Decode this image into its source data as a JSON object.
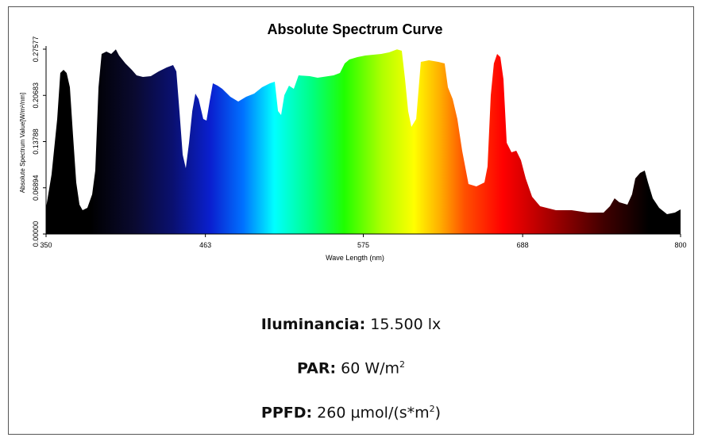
{
  "chart_data": {
    "type": "area",
    "title": "Absolute Spectrum Curve",
    "x_label": "Wave Length (nm)",
    "y_label": "Absolute Spectrum Value[W/m²/nm]",
    "x": [
      350,
      353.9,
      357.9,
      360.1,
      362.4,
      364.6,
      366.9,
      369.1,
      371.4,
      373.7,
      375.9,
      379.3,
      382.7,
      384.9,
      387.2,
      389.4,
      392.8,
      396.2,
      399.5,
      401.8,
      406.3,
      410.8,
      414.2,
      418.7,
      424.3,
      429.9,
      435.6,
      440.1,
      442.4,
      444.6,
      446.9,
      449.1,
      451.4,
      453.7,
      455.9,
      458.2,
      461.5,
      463.8,
      466.0,
      468.3,
      471.7,
      475.0,
      480.7,
      486.3,
      491.9,
      497.6,
      503.2,
      508.8,
      512.2,
      514.5,
      516.7,
      519.0,
      522.3,
      525.7,
      529.1,
      537.0,
      542.6,
      553.9,
      558.4,
      561.8,
      565.1,
      570.8,
      576.4,
      587.7,
      593.3,
      598.9,
      602.3,
      604.6,
      606.8,
      609.1,
      612.5,
      615.8,
      621.5,
      628.2,
      632.7,
      635.0,
      638.4,
      641.7,
      645.1,
      649.6,
      655.2,
      660.9,
      663.1,
      665.4,
      667.6,
      669.9,
      672.2,
      674.4,
      676.7,
      680.1,
      683.5,
      686.8,
      690.2,
      694.7,
      700.4,
      711.6,
      722.8,
      734.1,
      745.4,
      749.9,
      753.2,
      756.6,
      762.3,
      765.6,
      767.9,
      771.3,
      774.6,
      776.9,
      780.3,
      784.8,
      790.4,
      796.0,
      800
    ],
    "values": [
      0.0391,
      0.0888,
      0.1716,
      0.2403,
      0.245,
      0.2403,
      0.219,
      0.1479,
      0.0769,
      0.0438,
      0.0355,
      0.0391,
      0.0592,
      0.0947,
      0.219,
      0.2687,
      0.2722,
      0.2687,
      0.2755,
      0.2663,
      0.2545,
      0.245,
      0.2367,
      0.2344,
      0.2355,
      0.2426,
      0.2486,
      0.2521,
      0.2426,
      0.1835,
      0.1184,
      0.0982,
      0.1361,
      0.1835,
      0.2095,
      0.2012,
      0.1716,
      0.1693,
      0.1977,
      0.2249,
      0.2213,
      0.2166,
      0.2048,
      0.1977,
      0.2048,
      0.2095,
      0.219,
      0.2249,
      0.2273,
      0.1835,
      0.1775,
      0.2071,
      0.2213,
      0.2166,
      0.2367,
      0.2355,
      0.2332,
      0.2367,
      0.2403,
      0.2545,
      0.2604,
      0.2639,
      0.2663,
      0.2687,
      0.271,
      0.2755,
      0.2734,
      0.2308,
      0.1835,
      0.1598,
      0.1716,
      0.2568,
      0.2592,
      0.2568,
      0.2545,
      0.219,
      0.2012,
      0.1716,
      0.1243,
      0.0746,
      0.071,
      0.0769,
      0.1006,
      0.2071,
      0.2545,
      0.2687,
      0.2639,
      0.2308,
      0.1361,
      0.1219,
      0.1243,
      0.1101,
      0.0829,
      0.0556,
      0.0414,
      0.0355,
      0.0355,
      0.032,
      0.032,
      0.0414,
      0.0533,
      0.0473,
      0.0438,
      0.0592,
      0.0829,
      0.0911,
      0.0947,
      0.0769,
      0.0533,
      0.0391,
      0.0296,
      0.032,
      0.0367
    ],
    "xlim": [
      350,
      800
    ],
    "xticks": [
      350,
      463,
      575,
      688,
      800
    ],
    "ylim": [
      0,
      0.27577
    ],
    "yticks": [
      {
        "value": 0,
        "label": "0.00000"
      },
      0.06894,
      0.13788,
      0.20683,
      0.27577
    ],
    "grid": false
  },
  "metrics": [
    {
      "label": "Iluminancia:",
      "value": "15.500 lx"
    },
    {
      "label": "PAR:",
      "value": "60 W/m",
      "sup": "2"
    },
    {
      "label": "PPFD:",
      "value": "260 µmol/(s*m",
      "sup": "2",
      "tail": ")"
    }
  ]
}
